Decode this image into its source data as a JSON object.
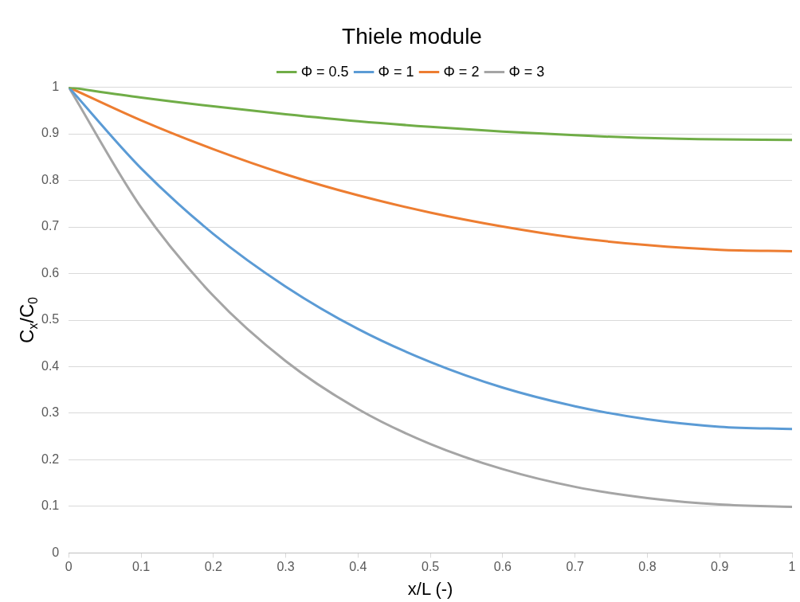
{
  "chart_data": {
    "type": "line",
    "title": "Thiele module",
    "xlabel": "x/L (-)",
    "ylabel": "C$_{x}$/C$_{0}$",
    "x": [
      0,
      0.1,
      0.2,
      0.3,
      0.4,
      0.5,
      0.6,
      0.7,
      0.8,
      0.9,
      1
    ],
    "series": [
      {
        "name": "Φ = 0.5",
        "color": "#70ad47",
        "values": [
          1,
          0.978,
          0.959,
          0.942,
          0.927,
          0.915,
          0.905,
          0.897,
          0.891,
          0.888,
          0.887
        ]
      },
      {
        "name": "Φ = 1",
        "color": "#5b9bd5",
        "values": [
          1,
          0.826,
          0.685,
          0.572,
          0.481,
          0.41,
          0.355,
          0.315,
          0.287,
          0.271,
          0.266
        ]
      },
      {
        "name": "Φ = 2",
        "color": "#ed7d31",
        "values": [
          1,
          0.929,
          0.867,
          0.813,
          0.768,
          0.731,
          0.701,
          0.677,
          0.661,
          0.651,
          0.648
        ]
      },
      {
        "name": "Φ = 3",
        "color": "#a5a5a5",
        "values": [
          1,
          0.742,
          0.552,
          0.412,
          0.309,
          0.234,
          0.18,
          0.142,
          0.118,
          0.104,
          0.099
        ]
      }
    ],
    "xlim": [
      0,
      1
    ],
    "xticks": [
      0,
      0.1,
      0.2,
      0.3,
      0.4,
      0.5,
      0.6,
      0.7,
      0.8,
      0.9,
      1
    ],
    "ylim": [
      0,
      1
    ],
    "yticks": [
      0,
      0.1,
      0.2,
      0.3,
      0.4,
      0.5,
      0.6,
      0.7,
      0.8,
      0.9,
      1
    ],
    "grid": "y",
    "legend": "top",
    "marker": "none",
    "line_style": "solid"
  }
}
